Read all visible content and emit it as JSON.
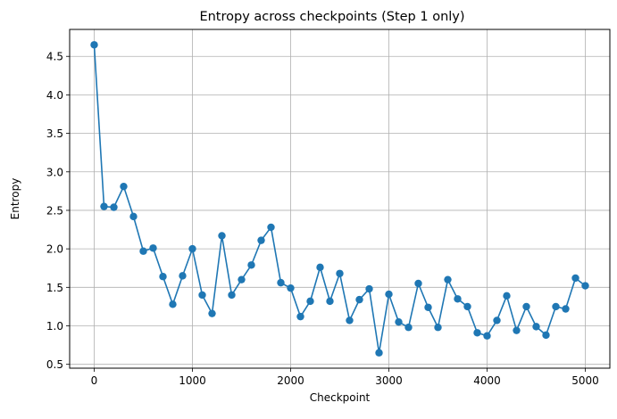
{
  "chart_data": {
    "type": "line",
    "title": "Entropy across checkpoints (Step 1 only)",
    "xlabel": "Checkpoint",
    "ylabel": "Entropy",
    "xlim": [
      -250,
      5250
    ],
    "ylim": [
      0.45,
      4.85
    ],
    "xticks": [
      0,
      1000,
      2000,
      3000,
      4000,
      5000
    ],
    "yticks": [
      0.5,
      1.0,
      1.5,
      2.0,
      2.5,
      3.0,
      3.5,
      4.0,
      4.5
    ],
    "xtick_labels": [
      "0",
      "1000",
      "2000",
      "3000",
      "4000",
      "5000"
    ],
    "ytick_labels": [
      "0.5",
      "1.0",
      "1.5",
      "2.0",
      "2.5",
      "3.0",
      "3.5",
      "4.0",
      "4.5"
    ],
    "grid": true,
    "markers": true,
    "color": "#1f77b4",
    "series": [
      {
        "x": [
          0,
          100,
          200,
          300,
          400,
          500,
          600,
          700,
          800,
          900,
          1000,
          1100,
          1200,
          1300,
          1400,
          1500,
          1600,
          1700,
          1800,
          1900,
          2000,
          2100,
          2200,
          2300,
          2400,
          2500,
          2600,
          2700,
          2800,
          2900,
          3000,
          3100,
          3200,
          3300,
          3400,
          3500,
          3600,
          3700,
          3800,
          3900,
          4000,
          4100,
          4200,
          4300,
          4400,
          4500,
          4600,
          4700,
          4800,
          4900,
          5000
        ],
        "values": [
          4.65,
          2.55,
          2.54,
          2.81,
          2.42,
          1.97,
          2.01,
          1.64,
          1.28,
          1.65,
          2.0,
          1.4,
          1.16,
          2.17,
          1.4,
          1.6,
          1.79,
          2.11,
          2.28,
          1.56,
          1.49,
          1.12,
          1.32,
          1.76,
          1.32,
          1.68,
          1.07,
          1.34,
          1.48,
          0.65,
          1.41,
          1.05,
          0.98,
          1.55,
          1.24,
          0.98,
          1.6,
          1.35,
          1.25,
          0.91,
          0.87,
          1.07,
          1.39,
          0.94,
          1.25,
          0.99,
          0.88,
          1.25,
          1.22,
          1.62,
          1.52
        ]
      }
    ]
  }
}
